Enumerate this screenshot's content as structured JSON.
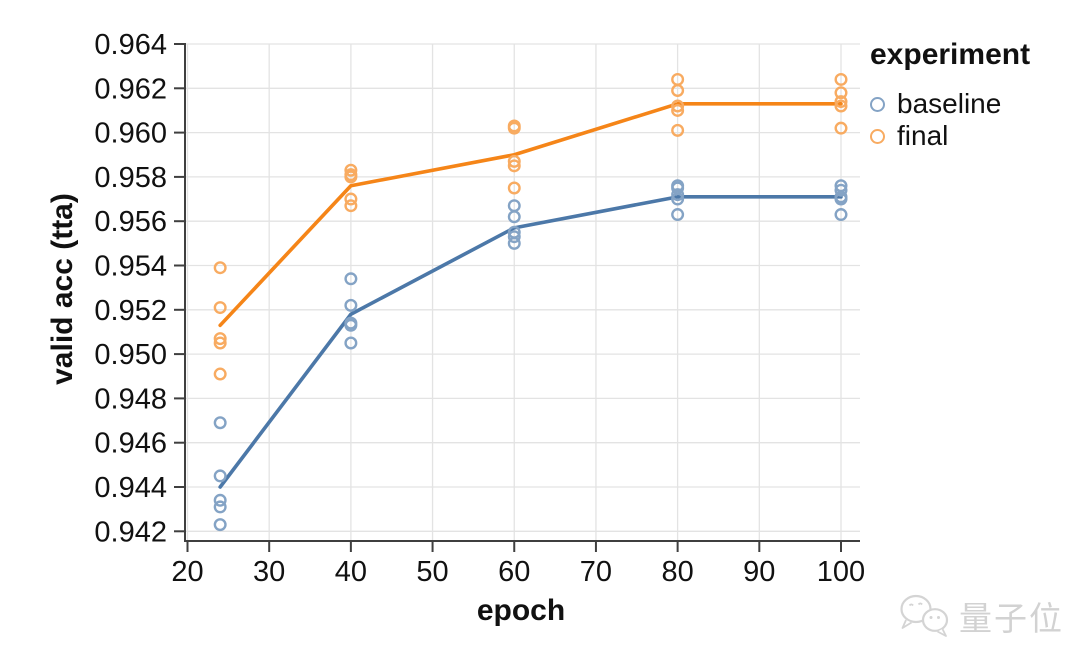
{
  "chart_data": {
    "type": "scatter",
    "title": "",
    "xlabel": "epoch",
    "ylabel": "valid acc (tta)",
    "x_ticks": [
      20,
      30,
      40,
      50,
      60,
      70,
      80,
      90,
      100
    ],
    "y_ticks": [
      0.942,
      0.944,
      0.946,
      0.948,
      0.95,
      0.952,
      0.954,
      0.956,
      0.958,
      0.96,
      0.962,
      0.964
    ],
    "xlim": [
      19.7,
      102.3
    ],
    "ylim": [
      0.9416,
      0.964
    ],
    "grid": true,
    "legend": {
      "title": "experiment",
      "position": "top-right"
    },
    "series": [
      {
        "name": "baseline",
        "line_color": "#4c78a8",
        "point_color": "#84a3c5",
        "x": [
          24,
          40,
          60,
          80,
          100
        ],
        "runs_y": [
          [
            0.9469,
            0.9445,
            0.9434,
            0.9431,
            0.9423
          ],
          [
            0.9534,
            0.9522,
            0.9514,
            0.9513,
            0.9505
          ],
          [
            0.9567,
            0.9562,
            0.9555,
            0.9553,
            0.955
          ],
          [
            0.9576,
            0.9575,
            0.9572,
            0.957,
            0.9563
          ],
          [
            0.9576,
            0.9574,
            0.9571,
            0.957,
            0.9563
          ]
        ],
        "mean_y": [
          0.944,
          0.9518,
          0.9557,
          0.9571,
          0.9571
        ]
      },
      {
        "name": "final",
        "line_color": "#f58518",
        "point_color": "#f8ab61",
        "x": [
          24,
          40,
          60,
          80,
          100
        ],
        "runs_y": [
          [
            0.9539,
            0.9521,
            0.9507,
            0.9505,
            0.9491
          ],
          [
            0.9583,
            0.9581,
            0.958,
            0.957,
            0.9567
          ],
          [
            0.9603,
            0.9602,
            0.9587,
            0.9585,
            0.9575
          ],
          [
            0.9624,
            0.9619,
            0.9612,
            0.961,
            0.9601
          ],
          [
            0.9624,
            0.9618,
            0.9614,
            0.9612,
            0.9602
          ]
        ],
        "mean_y": [
          0.9513,
          0.9576,
          0.959,
          0.9613,
          0.9613
        ]
      }
    ]
  },
  "watermark": {
    "icon": "wechat-icon",
    "text": "量子位"
  }
}
